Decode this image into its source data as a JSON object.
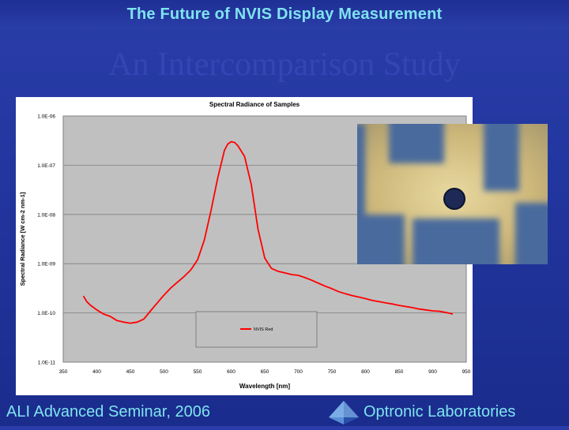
{
  "slide": {
    "title": "The Future of NVIS Display Measurement",
    "subtitle": "An Intercomparison Study",
    "footer_left": "ALI Advanced Seminar, 2006",
    "footer_right": "Optronic Laboratories"
  },
  "colors": {
    "background": "#2236a0",
    "title_text": "#7fe3f0",
    "plot_area": "#c0c0c0",
    "series_line": "#ff0000"
  },
  "photo": {
    "icon": "letter-h-sample-photo"
  },
  "logo": {
    "icon": "pyramid-logo"
  },
  "chart_data": {
    "type": "line",
    "title": "Spectral Radiance of Samples",
    "xlabel": "Wavelength [nm]",
    "ylabel": "Spectral Radiance [W cm-2 nm-1]",
    "xlim": [
      350,
      950
    ],
    "ylim": [
      1e-11,
      1e-06
    ],
    "yscale": "log",
    "x_ticks": [
      "350",
      "400",
      "450",
      "500",
      "550",
      "600",
      "650",
      "700",
      "750",
      "800",
      "850",
      "900",
      "950"
    ],
    "y_ticks": [
      "1.0E-06",
      "1.0E-07",
      "1.0E-08",
      "1.0E-09",
      "1.0E-10",
      "1.0E-11"
    ],
    "grid": true,
    "legend": "bottom-left",
    "series": [
      {
        "name": "NVIS Red",
        "x": [
          380,
          385,
          390,
          400,
          410,
          420,
          430,
          440,
          450,
          460,
          470,
          480,
          490,
          500,
          510,
          520,
          530,
          540,
          550,
          560,
          570,
          580,
          590,
          595,
          600,
          605,
          610,
          620,
          630,
          640,
          650,
          660,
          670,
          680,
          690,
          700,
          710,
          720,
          730,
          740,
          750,
          760,
          770,
          780,
          790,
          800,
          810,
          820,
          830,
          840,
          850,
          860,
          870,
          880,
          890,
          900,
          910,
          920,
          930
        ],
        "y": [
          2.2e-10,
          1.7e-10,
          1.45e-10,
          1.15e-10,
          9.5e-11,
          8.5e-11,
          7e-11,
          6.5e-11,
          6.2e-11,
          6.5e-11,
          7.5e-11,
          1.1e-10,
          1.6e-10,
          2.3e-10,
          3.2e-10,
          4.2e-10,
          5.5e-10,
          7.5e-10,
          1.2e-09,
          3e-09,
          1.2e-08,
          5.5e-08,
          2e-07,
          2.7e-07,
          3e-07,
          2.9e-07,
          2.5e-07,
          1.5e-07,
          4e-08,
          5e-09,
          1.3e-09,
          8e-10,
          7e-10,
          6.5e-10,
          6e-10,
          5.8e-10,
          5.2e-10,
          4.6e-10,
          4e-10,
          3.5e-10,
          3.1e-10,
          2.7e-10,
          2.45e-10,
          2.25e-10,
          2.1e-10,
          1.95e-10,
          1.8e-10,
          1.7e-10,
          1.6e-10,
          1.52e-10,
          1.42e-10,
          1.35e-10,
          1.28e-10,
          1.2e-10,
          1.15e-10,
          1.1e-10,
          1.08e-10,
          1.02e-10,
          9.5e-11
        ]
      }
    ]
  }
}
